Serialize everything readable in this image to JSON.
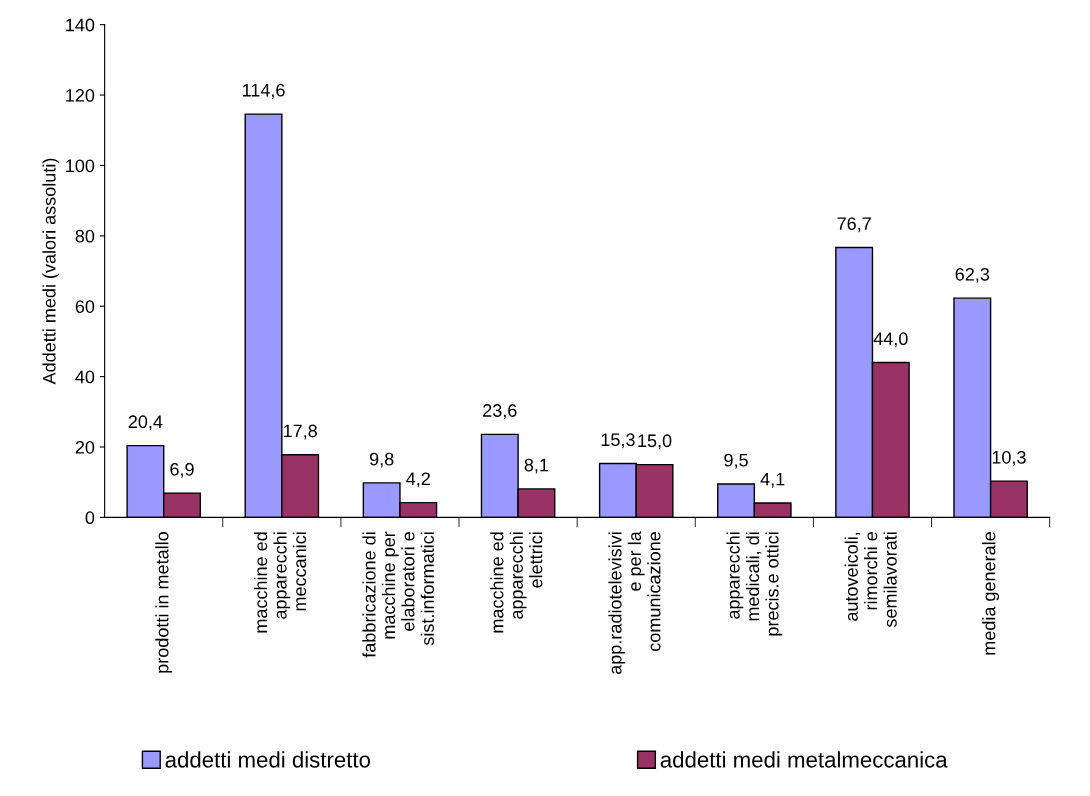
{
  "chart_data": {
    "type": "bar",
    "ylabel": "Addetti medi (valori assoluti)",
    "categories": [
      "prodotti in metallo",
      "macchine ed\napparecchi\nmeccanici",
      "fabbricazione di\nmacchine per\nelaboratori e\nsist.informatici",
      "macchine ed\napparecchi\nelettrici",
      "app.radiotelevisivi\ne per la\ncomunicazione",
      "apparecchi\nmedicali, di\nprecis.e ottici",
      "autoveicoli,\nrimorchi e\nsemilavorati",
      "media generale"
    ],
    "series": [
      {
        "name": "addetti medi distretto",
        "color": "#9999ff",
        "values": [
          20.4,
          114.6,
          9.8,
          23.6,
          15.3,
          9.5,
          76.7,
          62.3
        ],
        "value_labels": [
          "20,4",
          "114,6",
          "9,8",
          "23,6",
          "15,3",
          "9,5",
          "76,7",
          "62,3"
        ]
      },
      {
        "name": "addetti medi metalmeccanica",
        "color": "#993366",
        "values": [
          6.9,
          17.8,
          4.2,
          8.1,
          15.0,
          4.1,
          44.0,
          10.3
        ],
        "value_labels": [
          "6,9",
          "17,8",
          "4,2",
          "8,1",
          "15,0",
          "4,1",
          "44,0",
          "10,3"
        ]
      }
    ],
    "ylim": [
      0,
      140
    ],
    "yticks": [
      0,
      20,
      40,
      60,
      80,
      100,
      120,
      140
    ],
    "grid": false,
    "legend": "bottom"
  }
}
